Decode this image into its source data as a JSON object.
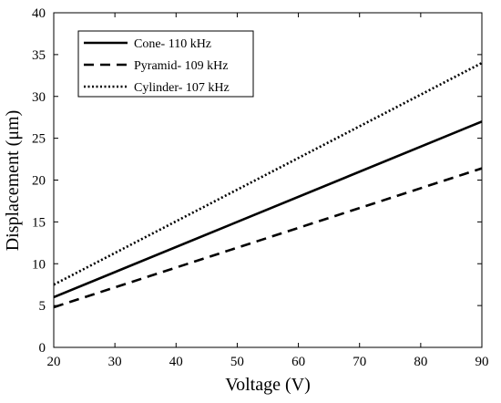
{
  "chart_data": {
    "type": "line",
    "title": "",
    "xlabel": "Voltage (V)",
    "ylabel": "Displacement (μm)",
    "xlim": [
      20,
      90
    ],
    "ylim": [
      0,
      40
    ],
    "xticks": [
      20,
      30,
      40,
      50,
      60,
      70,
      80,
      90
    ],
    "yticks": [
      0,
      5,
      10,
      15,
      20,
      25,
      30,
      35,
      40
    ],
    "grid": false,
    "legend_position": "top-left",
    "series": [
      {
        "name": "Cone- 110 kHz",
        "style": "solid",
        "color": "#000000",
        "x": [
          20,
          90
        ],
        "y": [
          6.0,
          27.0
        ]
      },
      {
        "name": "Pyramid- 109 kHz",
        "style": "dashed",
        "color": "#000000",
        "x": [
          20,
          90
        ],
        "y": [
          4.8,
          21.4
        ]
      },
      {
        "name": "Cylinder- 107 kHz",
        "style": "dotted",
        "color": "#000000",
        "x": [
          20,
          90
        ],
        "y": [
          7.5,
          34.0
        ]
      }
    ]
  }
}
